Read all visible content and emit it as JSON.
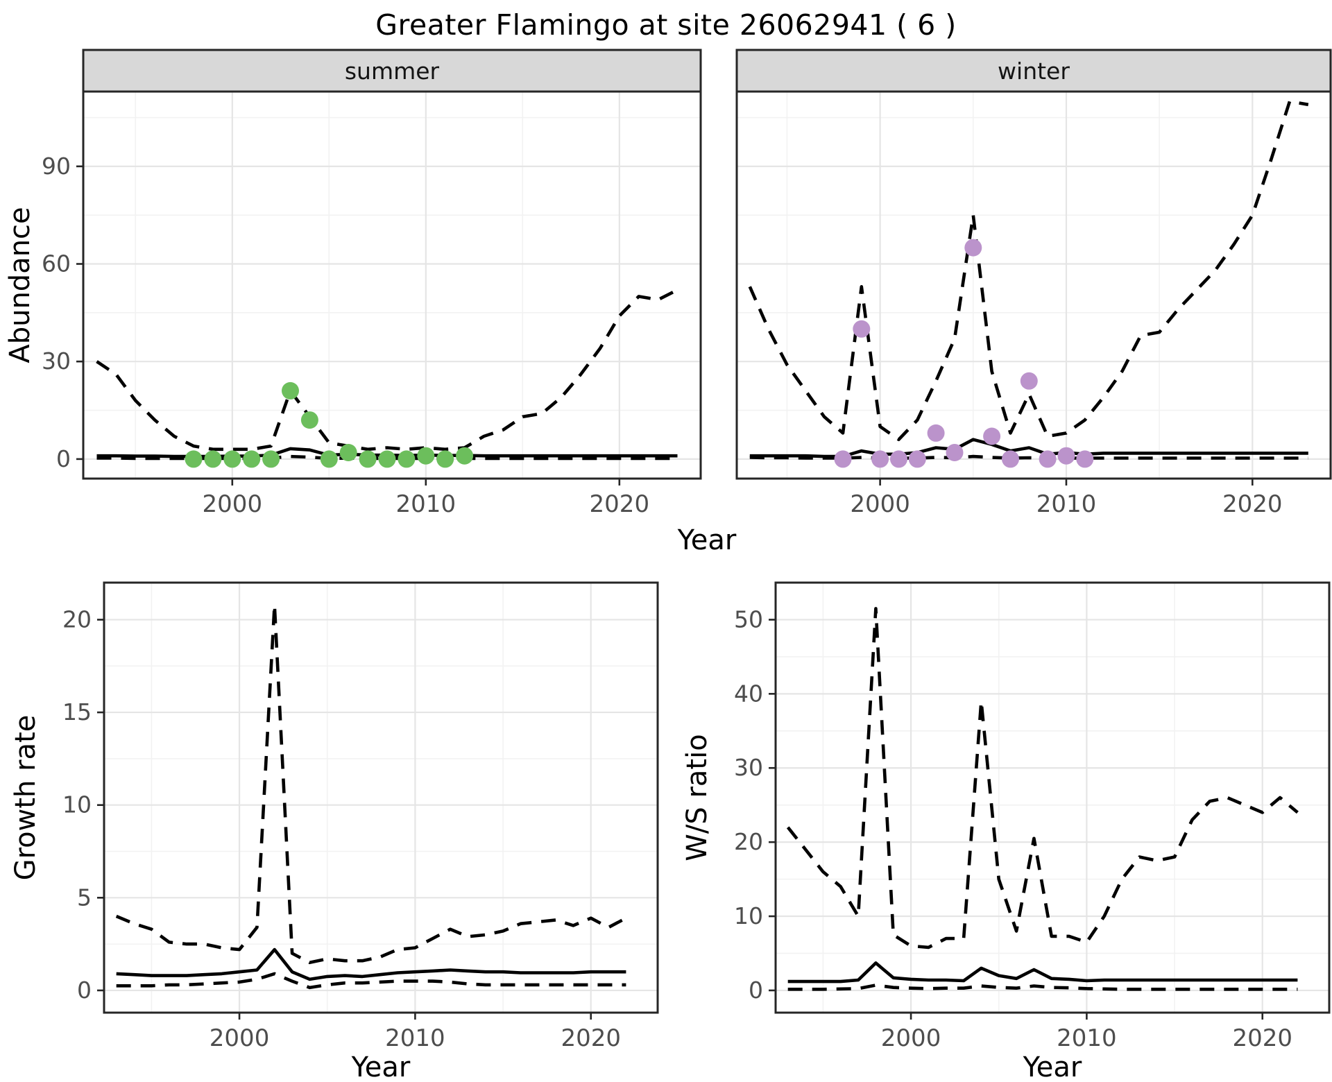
{
  "chart_data": {
    "type": "line",
    "title": "Greater Flamingo at site 26062941 ( 6 )",
    "legend": "none",
    "grid": "on",
    "x_axis": {
      "label": "Year",
      "range": [
        1992.3,
        2024.2
      ],
      "major_ticks": [
        2000,
        2010,
        2020
      ],
      "minor_ticks": [
        1995,
        2005,
        2015
      ]
    },
    "abundance_axis": {
      "label": "Abundance",
      "range": [
        -6,
        113
      ],
      "major_ticks": [
        0,
        30,
        60,
        90
      ],
      "minor_ticks": [
        15,
        45,
        75,
        105
      ]
    },
    "years": [
      1993,
      1994,
      1995,
      1996,
      1997,
      1998,
      1999,
      2000,
      2001,
      2002,
      2003,
      2004,
      2005,
      2006,
      2007,
      2008,
      2009,
      2010,
      2011,
      2012,
      2013,
      2014,
      2015,
      2016,
      2017,
      2018,
      2019,
      2020,
      2021,
      2022,
      2023
    ],
    "facets": [
      {
        "label": "summer",
        "dot_color_key": "summer_dot_color",
        "upper_ci": [
          30,
          26,
          18,
          12,
          7,
          4,
          3,
          3,
          3,
          4,
          21,
          13,
          5,
          4,
          3,
          3.5,
          3,
          3.5,
          3,
          3.5,
          7,
          9,
          13,
          14,
          19,
          26,
          34,
          44,
          50,
          49,
          52
        ],
        "median": [
          1,
          1,
          0.9,
          0.9,
          0.8,
          0.8,
          0.8,
          0.9,
          0.9,
          1.2,
          3.2,
          2.8,
          1.2,
          1.5,
          1.2,
          1.2,
          1.1,
          1.2,
          1.1,
          1.1,
          1,
          1,
          1,
          1,
          1,
          1,
          1,
          1,
          1,
          1,
          1
        ],
        "lower_ci": [
          0.3,
          0.3,
          0.2,
          0.2,
          0.2,
          0.2,
          0.2,
          0.2,
          0.2,
          0.3,
          0.8,
          0.6,
          0.2,
          0.3,
          0.2,
          0.2,
          0.2,
          0.2,
          0.2,
          0.2,
          0.2,
          0.2,
          0.2,
          0.2,
          0.2,
          0.2,
          0.2,
          0.2,
          0.2,
          0.2,
          0.2
        ],
        "obs_years": [
          1998,
          1999,
          2000,
          2001,
          2002,
          2003,
          2004,
          2005,
          2006,
          2007,
          2008,
          2009,
          2010,
          2011,
          2012
        ],
        "obs_values": [
          0,
          0,
          0,
          0,
          0,
          21,
          12,
          0,
          2,
          0,
          0,
          0,
          1,
          0,
          1
        ]
      },
      {
        "label": "winter",
        "dot_color_key": "winter_dot_color",
        "upper_ci": [
          53,
          40,
          29,
          21,
          13,
          8,
          53,
          10,
          6,
          12,
          24,
          37,
          75,
          27,
          8,
          20,
          7,
          8,
          12,
          19,
          27,
          38,
          39,
          46,
          52,
          58,
          66,
          75,
          92,
          110,
          109
        ],
        "median": [
          1,
          1,
          1,
          1,
          0.8,
          0.8,
          2.5,
          1.5,
          1.5,
          2,
          3.5,
          3,
          6,
          4.5,
          2.5,
          3.5,
          1.5,
          2,
          1.5,
          1.8,
          1.8,
          1.8,
          1.8,
          1.8,
          1.8,
          1.8,
          1.8,
          1.8,
          1.8,
          1.8,
          1.8
        ],
        "lower_ci": [
          0.5,
          0.4,
          0.4,
          0.3,
          0.3,
          0.3,
          0.5,
          0.3,
          0.3,
          0.3,
          0.5,
          0.4,
          0.8,
          0.5,
          0.3,
          0.4,
          0.3,
          0.3,
          0.3,
          0.3,
          0.3,
          0.3,
          0.3,
          0.3,
          0.3,
          0.3,
          0.3,
          0.3,
          0.3,
          0.3,
          0.3
        ],
        "obs_years": [
          1998,
          1999,
          2000,
          2001,
          2002,
          2003,
          2004,
          2005,
          2006,
          2007,
          2008,
          2009,
          2010,
          2011
        ],
        "obs_values": [
          0,
          40,
          0,
          0,
          0,
          8,
          2,
          65,
          7,
          0,
          24,
          0,
          1,
          0
        ]
      }
    ],
    "growth": {
      "ylabel": "Growth rate",
      "xlabel": "Year",
      "x_range": [
        1992.3,
        2023.8
      ],
      "y_range": [
        -1.2,
        22
      ],
      "y_major": [
        0,
        5,
        10,
        15,
        20
      ],
      "y_minor": [
        2.5,
        7.5,
        12.5,
        17.5
      ],
      "x_major": [
        2000,
        2010,
        2020
      ],
      "x_minor": [
        1995,
        2005,
        2015
      ],
      "years": [
        1993,
        1994,
        1995,
        1996,
        1997,
        1998,
        1999,
        2000,
        2001,
        2002,
        2003,
        2004,
        2005,
        2006,
        2007,
        2008,
        2009,
        2010,
        2011,
        2012,
        2013,
        2014,
        2015,
        2016,
        2017,
        2018,
        2019,
        2020,
        2021,
        2022
      ],
      "upper_ci": [
        4.0,
        3.6,
        3.3,
        2.6,
        2.5,
        2.5,
        2.3,
        2.2,
        3.4,
        20.8,
        2.0,
        1.5,
        1.7,
        1.6,
        1.6,
        1.8,
        2.2,
        2.3,
        2.8,
        3.3,
        2.9,
        3.0,
        3.2,
        3.6,
        3.7,
        3.8,
        3.5,
        3.9,
        3.4,
        3.9
      ],
      "median": [
        0.9,
        0.85,
        0.8,
        0.8,
        0.8,
        0.85,
        0.9,
        1.0,
        1.1,
        2.2,
        1.0,
        0.6,
        0.75,
        0.8,
        0.75,
        0.85,
        0.95,
        1.0,
        1.05,
        1.1,
        1.05,
        1.0,
        1.0,
        0.95,
        0.95,
        0.95,
        0.95,
        1.0,
        1.0,
        1.0
      ],
      "lower_ci": [
        0.25,
        0.25,
        0.25,
        0.3,
        0.3,
        0.35,
        0.4,
        0.45,
        0.6,
        0.9,
        0.5,
        0.15,
        0.3,
        0.4,
        0.4,
        0.45,
        0.5,
        0.5,
        0.5,
        0.45,
        0.35,
        0.3,
        0.3,
        0.3,
        0.3,
        0.3,
        0.3,
        0.3,
        0.3,
        0.3
      ]
    },
    "ws_ratio": {
      "ylabel": "W/S ratio",
      "xlabel": "Year",
      "x_range": [
        1992.3,
        2023.8
      ],
      "y_range": [
        -3,
        55
      ],
      "y_major": [
        0,
        10,
        20,
        30,
        40,
        50
      ],
      "y_minor": [
        5,
        15,
        25,
        35,
        45
      ],
      "x_major": [
        2000,
        2010,
        2020
      ],
      "x_minor": [
        1995,
        2005,
        2015
      ],
      "years": [
        1993,
        1994,
        1995,
        1996,
        1997,
        1998,
        1999,
        2000,
        2001,
        2002,
        2003,
        2004,
        2005,
        2006,
        2007,
        2008,
        2009,
        2010,
        2011,
        2012,
        2013,
        2014,
        2015,
        2016,
        2017,
        2018,
        2019,
        2020,
        2021,
        2022
      ],
      "upper_ci": [
        22,
        19,
        16,
        14,
        10,
        51.5,
        7.5,
        6,
        5.8,
        7,
        7,
        39,
        15,
        8,
        20.5,
        7.3,
        7.3,
        6.5,
        10,
        15,
        18,
        17.5,
        18,
        23,
        25.5,
        26,
        25,
        24,
        26,
        24
      ],
      "median": [
        1.2,
        1.2,
        1.2,
        1.2,
        1.4,
        3.7,
        1.7,
        1.5,
        1.4,
        1.4,
        1.3,
        3.0,
        2.0,
        1.6,
        2.8,
        1.6,
        1.5,
        1.3,
        1.4,
        1.4,
        1.4,
        1.4,
        1.4,
        1.4,
        1.4,
        1.4,
        1.4,
        1.4,
        1.4,
        1.4
      ],
      "lower_ci": [
        0.15,
        0.15,
        0.15,
        0.2,
        0.25,
        0.7,
        0.4,
        0.3,
        0.25,
        0.3,
        0.3,
        0.6,
        0.4,
        0.3,
        0.6,
        0.4,
        0.35,
        0.25,
        0.2,
        0.15,
        0.15,
        0.15,
        0.15,
        0.15,
        0.15,
        0.15,
        0.15,
        0.15,
        0.15,
        0.15
      ]
    },
    "style": {
      "line_color": "#000000",
      "summer_dot_color": "#6cbe5c",
      "winter_dot_color": "#bb93cb",
      "grid_major": "#e5e5e5",
      "grid_minor": "#f2f2f2",
      "strip_bg": "#d8d8d8",
      "panel_border": "#262626",
      "tick_label_color": "#4d4d4d",
      "axis_title_color": "#000000"
    }
  }
}
